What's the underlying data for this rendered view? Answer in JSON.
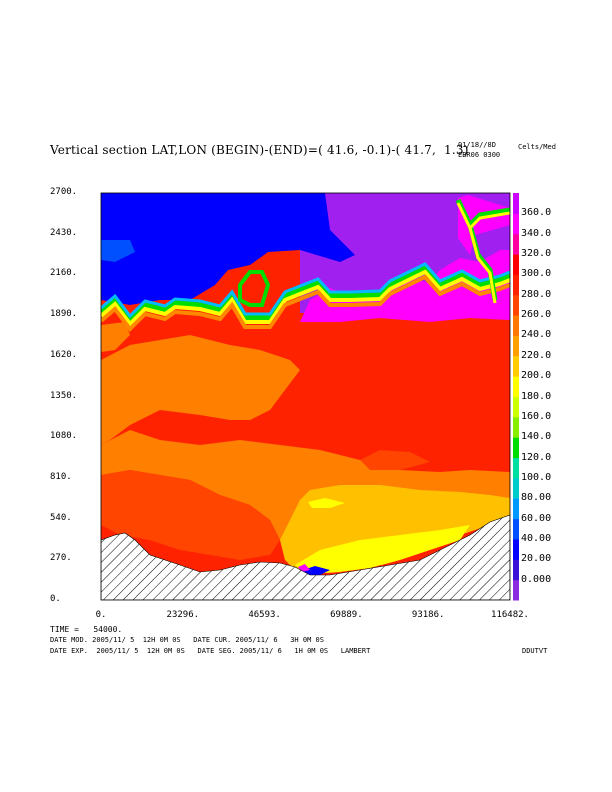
{
  "title": "Vertical section LAT,LON (BEGIN)-(END)=( 41.6, -0.1)-( 41.7,  1.3)",
  "header_right": {
    "date_code": "01/18//8D",
    "exp_code": "EBR06 0300",
    "units": "Celts/Med"
  },
  "footer": {
    "time_line": "TIME =   54000.",
    "line1": "DATE MOD. 2005/11/ 5  12H 0M 0S   DATE CUR. 2005/11/ 6   3H 0M 0S",
    "line2": "DATE EXP.  2005/11/ 5  12H 0M 0S   DATE SEG. 2005/11/ 6   1H 0M 0S   LAMBERT",
    "label_right": "DDUTVT"
  },
  "chart_data": {
    "type": "heatmap",
    "title": "Vertical section LAT,LON (BEGIN)-(END)=( 41.6, -0.1)-( 41.7,  1.3)",
    "xlim": [
      0,
      116482
    ],
    "ylim": [
      0,
      2700
    ],
    "x_ticks": [
      "0.",
      "23296.",
      "46593.",
      "69889.",
      "93186.",
      "116482."
    ],
    "y_ticks": [
      "0.",
      "270.",
      "540.",
      "810.",
      "1080.",
      "1350.",
      "1620.",
      "1890.",
      "2160.",
      "2430.",
      "2700."
    ],
    "colorbar": {
      "levels": [
        "0.000",
        "20.00",
        "40.00",
        "60.00",
        "80.00",
        "100.0",
        "120.0",
        "140.0",
        "160.0",
        "180.0",
        "200.0",
        "220.0",
        "240.0",
        "260.0",
        "280.0",
        "300.0",
        "320.0",
        "340.0",
        "360.0"
      ],
      "colors": [
        "#8a2be2",
        "#3a10d8",
        "#0000ff",
        "#0050ff",
        "#0099ff",
        "#00cccc",
        "#00e0a0",
        "#00dd00",
        "#88ee00",
        "#ccff00",
        "#ffff00",
        "#ffcc00",
        "#ffa000",
        "#ff7800",
        "#ff4500",
        "#ff2000",
        "#ff0000",
        "#ff00a0",
        "#ff00ff",
        "#cc00ff"
      ]
    },
    "terrain": "hatched",
    "grid": false
  },
  "colors": {
    "upper_blue": "#0000ff",
    "upper_purple": "#a020f0",
    "red": "#ff2200",
    "red_orange": "#ff4500",
    "orange": "#ff7f00",
    "yellow_orange": "#ffc000",
    "yellow": "#ffff00",
    "magenta": "#ff00ff",
    "hatch": "#000000"
  }
}
